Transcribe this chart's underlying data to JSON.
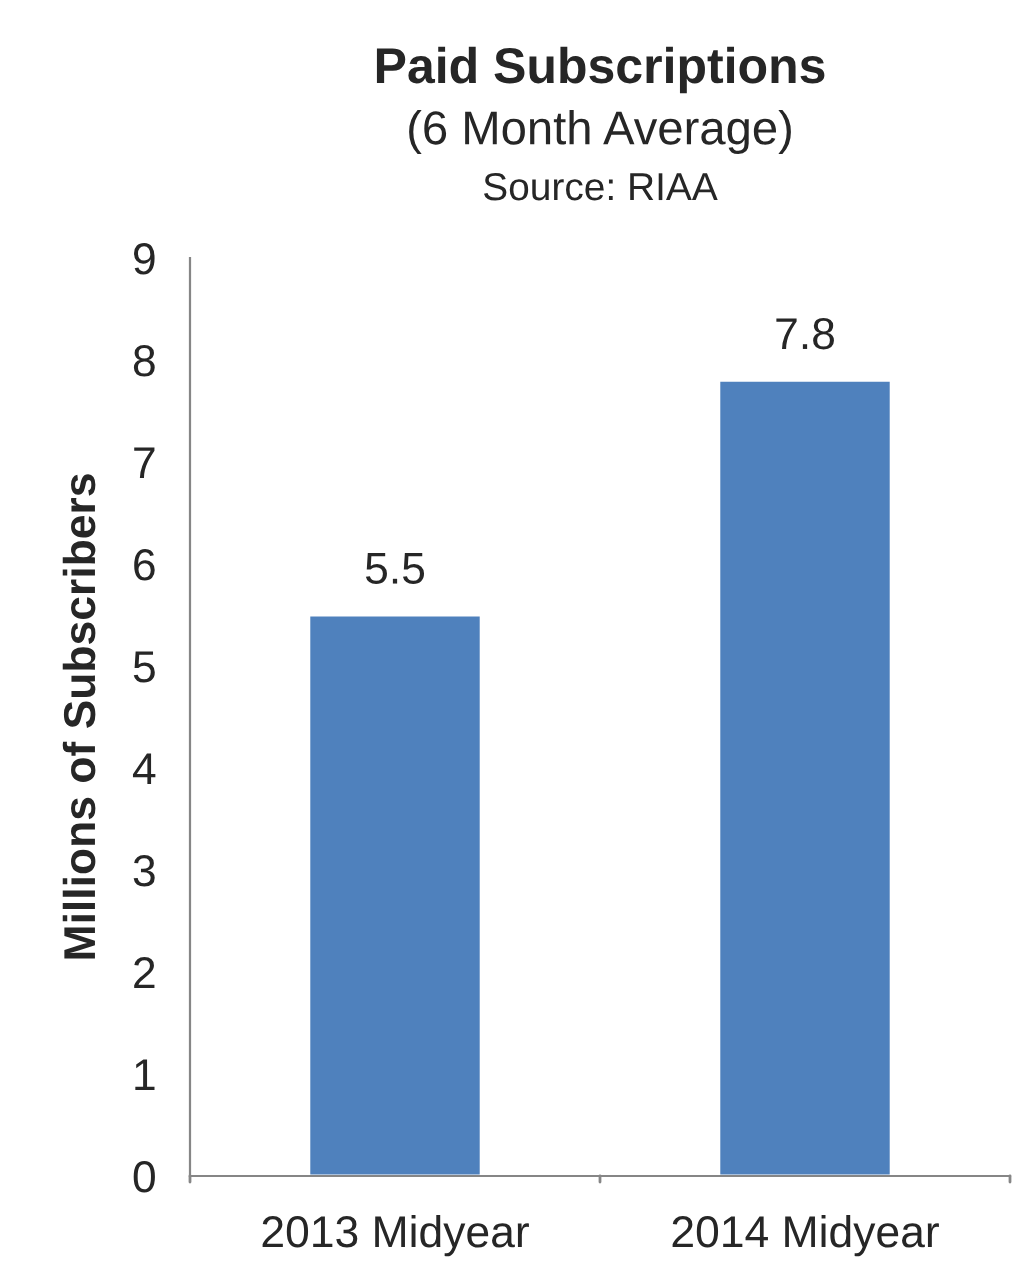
{
  "chart_data": {
    "type": "bar",
    "title": "Paid Subscriptions",
    "subtitle": "(6 Month Average)",
    "annotations": [
      "Source: RIAA"
    ],
    "ylabel": "Millions of Subscribers",
    "categories": [
      "2013 Midyear",
      "2014 Midyear"
    ],
    "series": [
      {
        "color": "#4f81bd",
        "values": [
          5.5,
          7.8
        ]
      }
    ],
    "ylim": [
      0,
      9
    ],
    "yticks": [
      0,
      1,
      2,
      3,
      4,
      5,
      6,
      7,
      8,
      9
    ],
    "data_labels": true,
    "grid": false,
    "legend": false
  }
}
